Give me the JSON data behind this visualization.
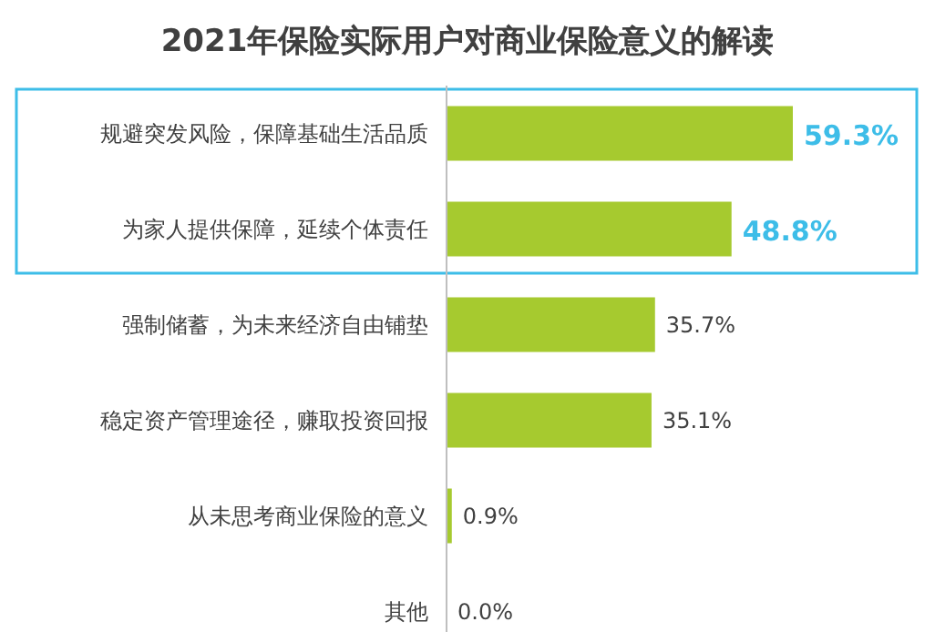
{
  "chart_data": {
    "type": "bar",
    "orientation": "horizontal",
    "title": "2021年保险实际用户对商业保险意义的解读",
    "categories": [
      "规避突发风险，保障基础生活品质",
      "为家人提供保障，延续个体责任",
      "强制储蓄，为未来经济自由铺垫",
      "稳定资产管理途径，赚取投资回报",
      "从未思考商业保险的意义",
      "其他"
    ],
    "values": [
      59.3,
      48.8,
      35.7,
      35.1,
      0.9,
      0.0
    ],
    "value_labels": [
      "**59.3%**",
      "**48.8%**",
      "35.7%",
      "35.1%",
      "0.9%",
      "0.0%"
    ],
    "color": "#a6ca2f"
  }
}
